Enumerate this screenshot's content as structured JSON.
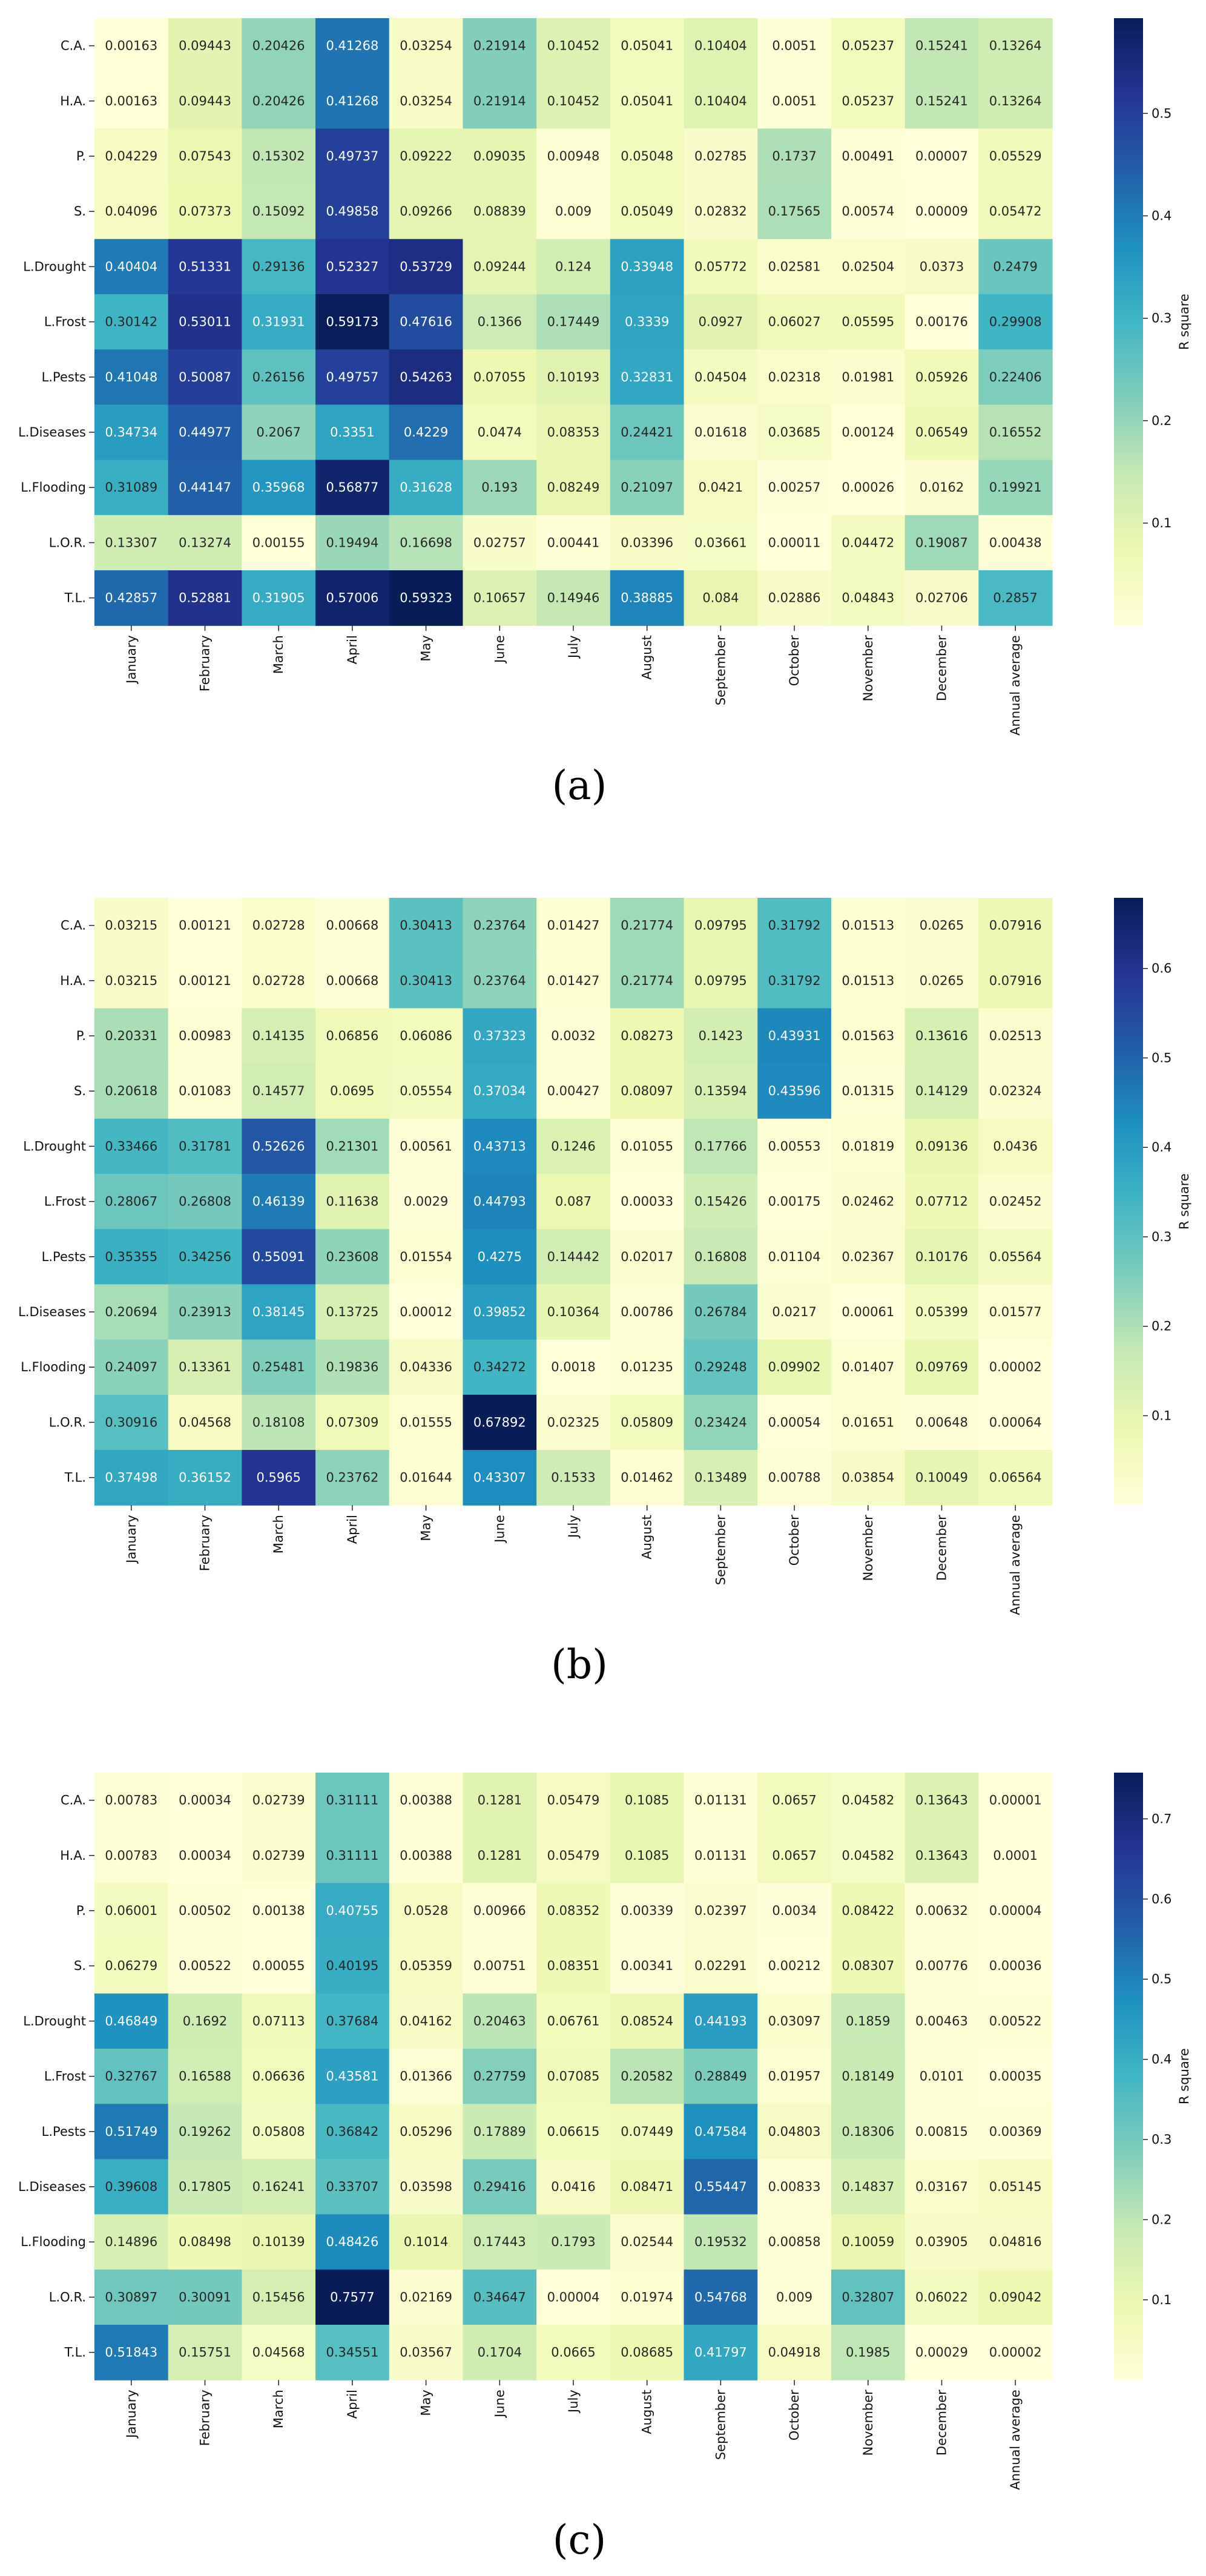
{
  "row_labels": [
    "C.A.",
    "H.A.",
    "P.",
    "S.",
    "L.Drought",
    "L.Frost",
    "L.Pests",
    "L.Diseases",
    "L.Flooding",
    "L.O.R.",
    "T.L."
  ],
  "col_labels": [
    "January",
    "February",
    "March",
    "April",
    "May",
    "June",
    "July",
    "August",
    "September",
    "October",
    "November",
    "December",
    "Annual average"
  ],
  "colorbar_label": "R square",
  "chart_data": [
    {
      "type": "heatmap",
      "caption": "(a)",
      "colorbar_label": "R square",
      "colorbar_ticks": [
        0.1,
        0.2,
        0.3,
        0.4,
        0.5
      ],
      "value_range": [
        1e-05,
        0.593
      ],
      "values": [
        [
          "0.00163",
          "0.09443",
          "0.20426",
          "0.41268",
          "0.03254",
          "0.21914",
          "0.10452",
          "0.05041",
          "0.10404",
          "0.0051",
          "0.05237",
          "0.15241",
          "0.13264"
        ],
        [
          "0.00163",
          "0.09443",
          "0.20426",
          "0.41268",
          "0.03254",
          "0.21914",
          "0.10452",
          "0.05041",
          "0.10404",
          "0.0051",
          "0.05237",
          "0.15241",
          "0.13264"
        ],
        [
          "0.04229",
          "0.07543",
          "0.15302",
          "0.49737",
          "0.09222",
          "0.09035",
          "0.00948",
          "0.05048",
          "0.02785",
          "0.1737",
          "0.00491",
          "0.00007",
          "0.05529"
        ],
        [
          "0.04096",
          "0.07373",
          "0.15092",
          "0.49858",
          "0.09266",
          "0.08839",
          "0.009",
          "0.05049",
          "0.02832",
          "0.17565",
          "0.00574",
          "0.00009",
          "0.05472"
        ],
        [
          "0.40404",
          "0.51331",
          "0.29136",
          "0.52327",
          "0.53729",
          "0.09244",
          "0.124",
          "0.33948",
          "0.05772",
          "0.02581",
          "0.02504",
          "0.0373",
          "0.2479"
        ],
        [
          "0.30142",
          "0.53011",
          "0.31931",
          "0.59173",
          "0.47616",
          "0.1366",
          "0.17449",
          "0.3339",
          "0.0927",
          "0.06027",
          "0.05595",
          "0.00176",
          "0.29908"
        ],
        [
          "0.41048",
          "0.50087",
          "0.26156",
          "0.49757",
          "0.54263",
          "0.07055",
          "0.10193",
          "0.32831",
          "0.04504",
          "0.02318",
          "0.01981",
          "0.05926",
          "0.22406"
        ],
        [
          "0.34734",
          "0.44977",
          "0.2067",
          "0.3351",
          "0.4229",
          "0.0474",
          "0.08353",
          "0.24421",
          "0.01618",
          "0.03685",
          "0.00124",
          "0.06549",
          "0.16552"
        ],
        [
          "0.31089",
          "0.44147",
          "0.35968",
          "0.56877",
          "0.31628",
          "0.193",
          "0.08249",
          "0.21097",
          "0.0421",
          "0.00257",
          "0.00026",
          "0.0162",
          "0.19921"
        ],
        [
          "0.13307",
          "0.13274",
          "0.00155",
          "0.19494",
          "0.16698",
          "0.02757",
          "0.00441",
          "0.03396",
          "0.03661",
          "0.00011",
          "0.04472",
          "0.19087",
          "0.00438"
        ],
        [
          "0.42857",
          "0.52881",
          "0.31905",
          "0.57006",
          "0.59323",
          "0.10657",
          "0.14946",
          "0.38885",
          "0.084",
          "0.02886",
          "0.04843",
          "0.02706",
          "0.2857"
        ]
      ]
    },
    {
      "type": "heatmap",
      "caption": "(b)",
      "colorbar_label": "R square",
      "colorbar_ticks": [
        0.1,
        0.2,
        0.3,
        0.4,
        0.5,
        0.6
      ],
      "value_range": [
        1e-05,
        0.679
      ],
      "values": [
        [
          "0.03215",
          "0.00121",
          "0.02728",
          "0.00668",
          "0.30413",
          "0.23764",
          "0.01427",
          "0.21774",
          "0.09795",
          "0.31792",
          "0.01513",
          "0.0265",
          "0.07916"
        ],
        [
          "0.03215",
          "0.00121",
          "0.02728",
          "0.00668",
          "0.30413",
          "0.23764",
          "0.01427",
          "0.21774",
          "0.09795",
          "0.31792",
          "0.01513",
          "0.0265",
          "0.07916"
        ],
        [
          "0.20331",
          "0.00983",
          "0.14135",
          "0.06856",
          "0.06086",
          "0.37323",
          "0.0032",
          "0.08273",
          "0.1423",
          "0.43931",
          "0.01563",
          "0.13616",
          "0.02513"
        ],
        [
          "0.20618",
          "0.01083",
          "0.14577",
          "0.0695",
          "0.05554",
          "0.37034",
          "0.00427",
          "0.08097",
          "0.13594",
          "0.43596",
          "0.01315",
          "0.14129",
          "0.02324"
        ],
        [
          "0.33466",
          "0.31781",
          "0.52626",
          "0.21301",
          "0.00561",
          "0.43713",
          "0.1246",
          "0.01055",
          "0.17766",
          "0.00553",
          "0.01819",
          "0.09136",
          "0.0436"
        ],
        [
          "0.28067",
          "0.26808",
          "0.46139",
          "0.11638",
          "0.0029",
          "0.44793",
          "0.087",
          "0.00033",
          "0.15426",
          "0.00175",
          "0.02462",
          "0.07712",
          "0.02452"
        ],
        [
          "0.35355",
          "0.34256",
          "0.55091",
          "0.23608",
          "0.01554",
          "0.4275",
          "0.14442",
          "0.02017",
          "0.16808",
          "0.01104",
          "0.02367",
          "0.10176",
          "0.05564"
        ],
        [
          "0.20694",
          "0.23913",
          "0.38145",
          "0.13725",
          "0.00012",
          "0.39852",
          "0.10364",
          "0.00786",
          "0.26784",
          "0.0217",
          "0.00061",
          "0.05399",
          "0.01577"
        ],
        [
          "0.24097",
          "0.13361",
          "0.25481",
          "0.19836",
          "0.04336",
          "0.34272",
          "0.0018",
          "0.01235",
          "0.29248",
          "0.09902",
          "0.01407",
          "0.09769",
          "0.00002"
        ],
        [
          "0.30916",
          "0.04568",
          "0.18108",
          "0.07309",
          "0.01555",
          "0.67892",
          "0.02325",
          "0.05809",
          "0.23424",
          "0.00054",
          "0.01651",
          "0.00648",
          "0.00064"
        ],
        [
          "0.37498",
          "0.36152",
          "0.5965",
          "0.23762",
          "0.01644",
          "0.43307",
          "0.1533",
          "0.01462",
          "0.13489",
          "0.00788",
          "0.03854",
          "0.10049",
          "0.06564"
        ]
      ]
    },
    {
      "type": "heatmap",
      "caption": "(c)",
      "colorbar_label": "R square",
      "colorbar_ticks": [
        0.1,
        0.2,
        0.3,
        0.4,
        0.5,
        0.6,
        0.7
      ],
      "value_range": [
        1e-05,
        0.7577
      ],
      "values": [
        [
          "0.00783",
          "0.00034",
          "0.02739",
          "0.31111",
          "0.00388",
          "0.1281",
          "0.05479",
          "0.1085",
          "0.01131",
          "0.0657",
          "0.04582",
          "0.13643",
          "0.00001"
        ],
        [
          "0.00783",
          "0.00034",
          "0.02739",
          "0.31111",
          "0.00388",
          "0.1281",
          "0.05479",
          "0.1085",
          "0.01131",
          "0.0657",
          "0.04582",
          "0.13643",
          "0.0001"
        ],
        [
          "0.06001",
          "0.00502",
          "0.00138",
          "0.40755",
          "0.0528",
          "0.00966",
          "0.08352",
          "0.00339",
          "0.02397",
          "0.0034",
          "0.08422",
          "0.00632",
          "0.00004"
        ],
        [
          "0.06279",
          "0.00522",
          "0.00055",
          "0.40195",
          "0.05359",
          "0.00751",
          "0.08351",
          "0.00341",
          "0.02291",
          "0.00212",
          "0.08307",
          "0.00776",
          "0.00036"
        ],
        [
          "0.46849",
          "0.1692",
          "0.07113",
          "0.37684",
          "0.04162",
          "0.20463",
          "0.06761",
          "0.08524",
          "0.44193",
          "0.03097",
          "0.1859",
          "0.00463",
          "0.00522"
        ],
        [
          "0.32767",
          "0.16588",
          "0.06636",
          "0.43581",
          "0.01366",
          "0.27759",
          "0.07085",
          "0.20582",
          "0.28849",
          "0.01957",
          "0.18149",
          "0.0101",
          "0.00035"
        ],
        [
          "0.51749",
          "0.19262",
          "0.05808",
          "0.36842",
          "0.05296",
          "0.17889",
          "0.06615",
          "0.07449",
          "0.47584",
          "0.04803",
          "0.18306",
          "0.00815",
          "0.00369"
        ],
        [
          "0.39608",
          "0.17805",
          "0.16241",
          "0.33707",
          "0.03598",
          "0.29416",
          "0.0416",
          "0.08471",
          "0.55447",
          "0.00833",
          "0.14837",
          "0.03167",
          "0.05145"
        ],
        [
          "0.14896",
          "0.08498",
          "0.10139",
          "0.48426",
          "0.1014",
          "0.17443",
          "0.1793",
          "0.02544",
          "0.19532",
          "0.00858",
          "0.10059",
          "0.03905",
          "0.04816"
        ],
        [
          "0.30897",
          "0.30091",
          "0.15456",
          "0.7577",
          "0.02169",
          "0.34647",
          "0.00004",
          "0.01974",
          "0.54768",
          "0.009",
          "0.32807",
          "0.06022",
          "0.09042"
        ],
        [
          "0.51843",
          "0.15751",
          "0.04568",
          "0.34551",
          "0.03567",
          "0.1704",
          "0.0665",
          "0.08685",
          "0.41797",
          "0.04918",
          "0.1985",
          "0.00029",
          "0.00002"
        ]
      ]
    }
  ]
}
